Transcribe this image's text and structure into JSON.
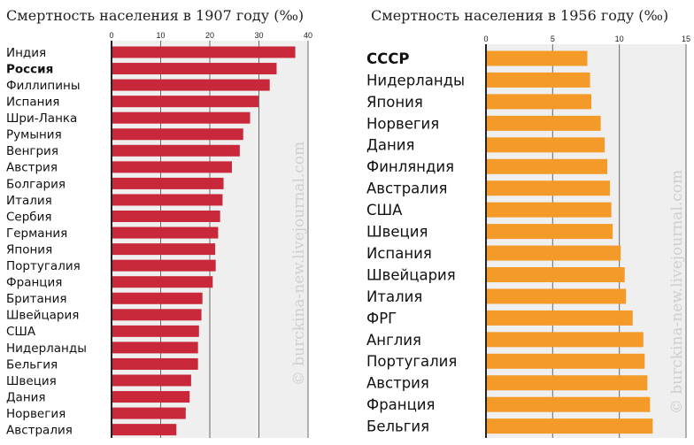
{
  "watermark": "© burckina-new.livejournal.com",
  "chart_data": [
    {
      "type": "bar",
      "orientation": "horizontal",
      "title": "Смертность населения в 1907 году (‰)",
      "color": "#c8283a",
      "highlight": "Россия",
      "xlim": [
        0,
        40
      ],
      "xticks": [
        0,
        10,
        20,
        30,
        40
      ],
      "grid": true,
      "categories": [
        "Индия",
        "Россия",
        "Филлипины",
        "Испания",
        "Шри-Ланка",
        "Румыния",
        "Венгрия",
        "Австрия",
        "Болгария",
        "Италия",
        "Сербия",
        "Германия",
        "Япония",
        "Португалия",
        "Франция",
        "Британия",
        "Швейцария",
        "США",
        "Нидерланды",
        "Бельгия",
        "Швеция",
        "Дания",
        "Норвегия",
        "Австралия"
      ],
      "values": [
        37.4,
        33.6,
        32.2,
        29.9,
        28.2,
        26.8,
        26.1,
        24.5,
        22.8,
        22.6,
        22.1,
        21.7,
        21.1,
        21.2,
        20.6,
        18.5,
        18.3,
        17.8,
        17.6,
        17.6,
        16.2,
        15.9,
        15.1,
        13.2
      ]
    },
    {
      "type": "bar",
      "orientation": "horizontal",
      "title": "Смертность населения в 1956 году (‰)",
      "color": "#f39a28",
      "highlight": "СССР",
      "xlim": [
        0,
        15
      ],
      "xticks": [
        0,
        5,
        10,
        15
      ],
      "grid": true,
      "categories": [
        "СССР",
        "Нидерланды",
        "Япония",
        "Норвегия",
        "Дания",
        "Финляндия",
        "Австралия",
        "США",
        "Швеция",
        "Испания",
        "Швейцария",
        "Италия",
        "ФРГ",
        "Англия",
        "Португалия",
        "Австрия",
        "Франция",
        "Бельгия"
      ],
      "values": [
        7.6,
        7.8,
        7.9,
        8.6,
        8.9,
        9.1,
        9.3,
        9.4,
        9.5,
        10.1,
        10.4,
        10.5,
        11.0,
        11.8,
        11.9,
        12.1,
        12.3,
        12.5
      ]
    }
  ]
}
